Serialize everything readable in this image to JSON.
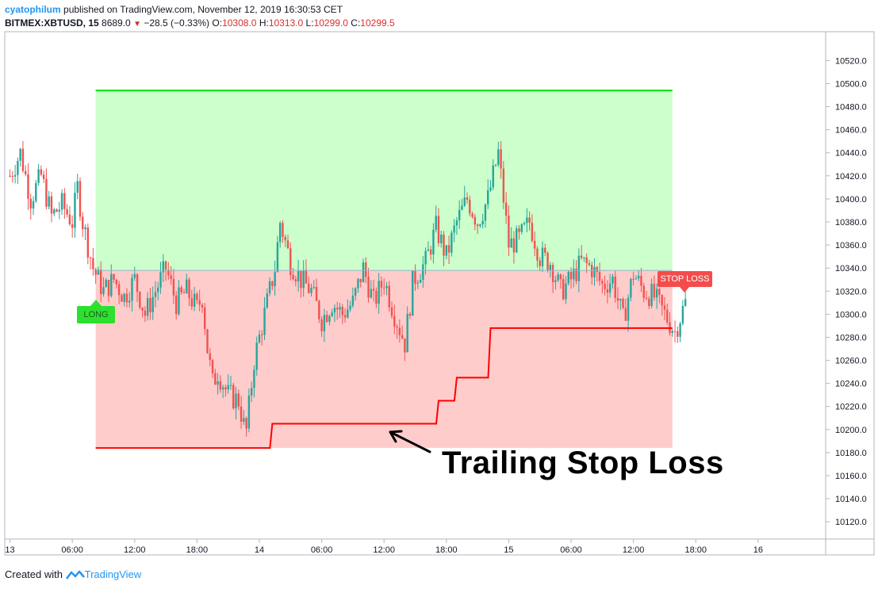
{
  "header": {
    "author": "cyatophilum",
    "published": " published on TradingView.com, November 12, 2019 16:30:53 CET",
    "symbol": "BITMEX:XBTUSD, 15",
    "last": "8689.0",
    "change": "−28.5 (−0.33%)",
    "o_label": "O:",
    "o_value": "10308.0",
    "h_label": "H:",
    "h_value": "10313.0",
    "l_label": "L:",
    "l_value": "10299.0",
    "c_label": "C:",
    "c_value": "10299.5"
  },
  "footer": {
    "created_with": "Created with",
    "brand": "TradingView"
  },
  "annotation": "Trailing Stop Loss",
  "tags": {
    "long": "LONG",
    "stop_loss": "STOP LOSS"
  },
  "colors": {
    "up": "#26a69a",
    "down": "#ef5350",
    "profit_zone": "#ccffcc",
    "loss_zone": "#ffcccc",
    "take_profit_line": "#00e000",
    "stop_line": "#ff0000",
    "entry_line": "#90b8c8"
  },
  "chart_data": {
    "type": "candlestick",
    "y_axis_ticks": [
      10120,
      10140,
      10160,
      10180,
      10200,
      10220,
      10240,
      10260,
      10280,
      10300,
      10320,
      10340,
      10360,
      10380,
      10400,
      10420,
      10440,
      10460,
      10480,
      10500,
      10520
    ],
    "y_tick_labels": [
      "10120.0",
      "10140.0",
      "10160.0",
      "10180.0",
      "10200.0",
      "10220.0",
      "10240.0",
      "10260.0",
      "10280.0",
      "10300.0",
      "10320.0",
      "10340.0",
      "10360.0",
      "10380.0",
      "10400.0",
      "10420.0",
      "10440.0",
      "10460.0",
      "10480.0",
      "10500.0",
      "10520.0"
    ],
    "x_tick_labels": [
      {
        "label": "13",
        "hour": 0
      },
      {
        "label": "06:00",
        "hour": 6
      },
      {
        "label": "12:00",
        "hour": 12
      },
      {
        "label": "18:00",
        "hour": 18
      },
      {
        "label": "14",
        "hour": 24
      },
      {
        "label": "06:00",
        "hour": 30
      },
      {
        "label": "12:00",
        "hour": 36
      },
      {
        "label": "18:00",
        "hour": 42
      },
      {
        "label": "15",
        "hour": 48
      },
      {
        "label": "06:00",
        "hour": 54
      },
      {
        "label": "12:00",
        "hour": 60
      },
      {
        "label": "18:00",
        "hour": 66
      },
      {
        "label": "16",
        "hour": 72
      }
    ],
    "x_range_hours": [
      -0.5,
      78.5
    ],
    "y_range": [
      10105,
      10545
    ],
    "position": {
      "side": "long",
      "entry_hour": 8.25,
      "exit_hour": 63.75,
      "entry_price": 10338,
      "take_profit": 10494,
      "initial_stop": 10184
    },
    "trailing_stop_steps": [
      {
        "hour": 8.25,
        "price": 10184
      },
      {
        "hour": 25.25,
        "price": 10205
      },
      {
        "hour": 41.25,
        "price": 10225
      },
      {
        "hour": 43,
        "price": 10245
      },
      {
        "hour": 46.25,
        "price": 10288
      },
      {
        "hour": 63.75,
        "price": 10288
      }
    ],
    "close_path": [
      {
        "hour": 0,
        "price": 10420
      },
      {
        "hour": 1,
        "price": 10440
      },
      {
        "hour": 2,
        "price": 10400
      },
      {
        "hour": 3,
        "price": 10420
      },
      {
        "hour": 4,
        "price": 10385
      },
      {
        "hour": 5,
        "price": 10395
      },
      {
        "hour": 6,
        "price": 10380
      },
      {
        "hour": 6.5,
        "price": 10410
      },
      {
        "hour": 7,
        "price": 10380
      },
      {
        "hour": 8,
        "price": 10340
      },
      {
        "hour": 9,
        "price": 10320
      },
      {
        "hour": 10,
        "price": 10330
      },
      {
        "hour": 11,
        "price": 10315
      },
      {
        "hour": 12,
        "price": 10330
      },
      {
        "hour": 13,
        "price": 10300
      },
      {
        "hour": 14,
        "price": 10320
      },
      {
        "hour": 15,
        "price": 10340
      },
      {
        "hour": 16,
        "price": 10310
      },
      {
        "hour": 17,
        "price": 10320
      },
      {
        "hour": 18,
        "price": 10305
      },
      {
        "hour": 18.5,
        "price": 10315
      },
      {
        "hour": 19,
        "price": 10270
      },
      {
        "hour": 19.5,
        "price": 10240
      },
      {
        "hour": 20,
        "price": 10250
      },
      {
        "hour": 21,
        "price": 10230
      },
      {
        "hour": 22,
        "price": 10225
      },
      {
        "hour": 22.7,
        "price": 10195
      },
      {
        "hour": 23.5,
        "price": 10260
      },
      {
        "hour": 24.5,
        "price": 10300
      },
      {
        "hour": 25.5,
        "price": 10340
      },
      {
        "hour": 26,
        "price": 10380
      },
      {
        "hour": 27,
        "price": 10345
      },
      {
        "hour": 28,
        "price": 10330
      },
      {
        "hour": 29,
        "price": 10320
      },
      {
        "hour": 30,
        "price": 10295
      },
      {
        "hour": 31,
        "price": 10310
      },
      {
        "hour": 32,
        "price": 10300
      },
      {
        "hour": 33,
        "price": 10310
      },
      {
        "hour": 34,
        "price": 10340
      },
      {
        "hour": 35,
        "price": 10310
      },
      {
        "hour": 36,
        "price": 10330
      },
      {
        "hour": 37,
        "price": 10300
      },
      {
        "hour": 38,
        "price": 10275
      },
      {
        "hour": 38.8,
        "price": 10330
      },
      {
        "hour": 40,
        "price": 10345
      },
      {
        "hour": 41,
        "price": 10375
      },
      {
        "hour": 42,
        "price": 10350
      },
      {
        "hour": 43,
        "price": 10380
      },
      {
        "hour": 44,
        "price": 10400
      },
      {
        "hour": 45,
        "price": 10380
      },
      {
        "hour": 46,
        "price": 10400
      },
      {
        "hour": 47,
        "price": 10440
      },
      {
        "hour": 48,
        "price": 10360
      },
      {
        "hour": 49,
        "price": 10365
      },
      {
        "hour": 50,
        "price": 10380
      },
      {
        "hour": 51,
        "price": 10350
      },
      {
        "hour": 52,
        "price": 10345
      },
      {
        "hour": 53,
        "price": 10320
      },
      {
        "hour": 54,
        "price": 10330
      },
      {
        "hour": 55,
        "price": 10345
      },
      {
        "hour": 56,
        "price": 10340
      },
      {
        "hour": 57,
        "price": 10325
      },
      {
        "hour": 58,
        "price": 10330
      },
      {
        "hour": 59,
        "price": 10295
      },
      {
        "hour": 60,
        "price": 10335
      },
      {
        "hour": 61,
        "price": 10320
      },
      {
        "hour": 62,
        "price": 10315
      },
      {
        "hour": 63,
        "price": 10300
      },
      {
        "hour": 64,
        "price": 10285
      },
      {
        "hour": 65,
        "price": 10310
      }
    ]
  }
}
